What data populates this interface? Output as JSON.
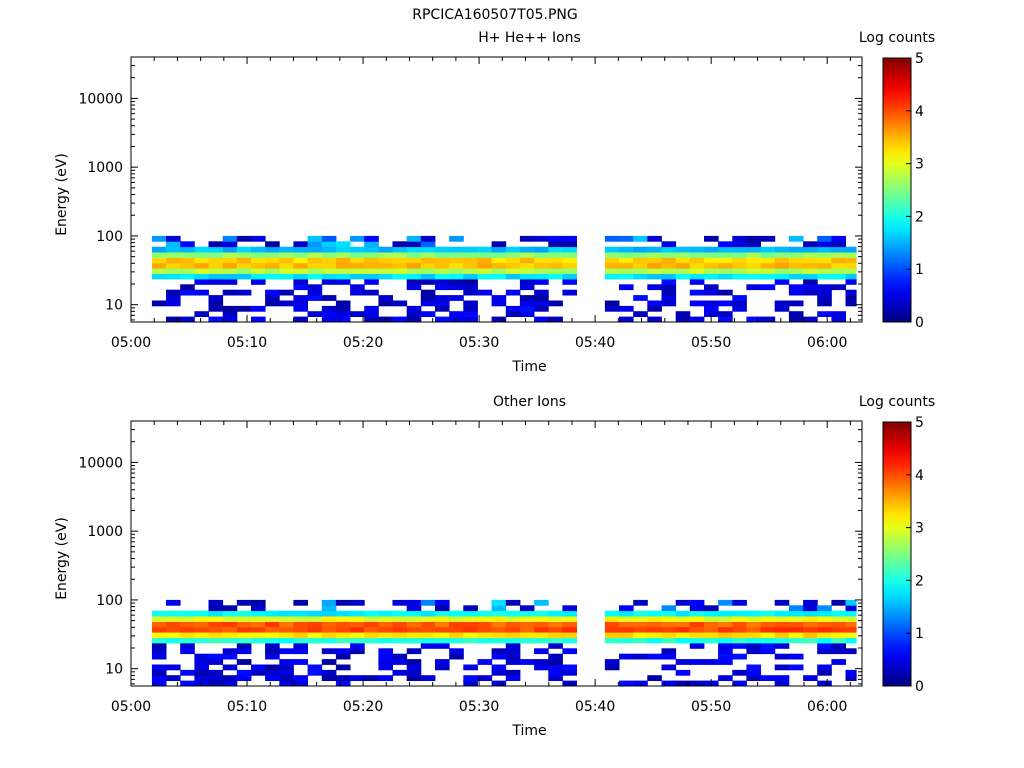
{
  "page": {
    "title": "RPCICA160507T05.PNG"
  },
  "chart_data": [
    {
      "type": "heatmap",
      "title": "H+ He++ Ions",
      "xlabel": "Time",
      "ylabel": "Energy (eV)",
      "x_ticks": [
        "05:00",
        "05:10",
        "05:20",
        "05:30",
        "05:40",
        "05:50",
        "06:00"
      ],
      "y_ticks": [
        "10",
        "100",
        "1000",
        "10000"
      ],
      "y_scale": "log",
      "xlim_minutes": [
        0,
        63
      ],
      "ylim": [
        5.6,
        40000
      ],
      "data_x_range_minutes": [
        1.8,
        62.5
      ],
      "data_gap_minutes": [
        39.3,
        40.8
      ],
      "energy_range": [
        5.6,
        100
      ],
      "band_center_energy": 40,
      "peak_value": 3.5,
      "colorbar": {
        "label": "Log counts",
        "ticks": [
          "0",
          "1",
          "2",
          "3",
          "4",
          "5"
        ],
        "min": 0,
        "max": 5
      },
      "seed": 7
    },
    {
      "type": "heatmap",
      "title": "Other Ions",
      "xlabel": "Time",
      "ylabel": "Energy (eV)",
      "x_ticks": [
        "05:00",
        "05:10",
        "05:20",
        "05:30",
        "05:40",
        "05:50",
        "06:00"
      ],
      "y_ticks": [
        "10",
        "100",
        "1000",
        "10000"
      ],
      "y_scale": "log",
      "xlim_minutes": [
        0,
        63
      ],
      "ylim": [
        5.6,
        40000
      ],
      "data_x_range_minutes": [
        1.8,
        62.5
      ],
      "data_gap_minutes": [
        39.3,
        40.8
      ],
      "energy_range": [
        5.6,
        100
      ],
      "band_center_energy": 40,
      "peak_value": 4.1,
      "colorbar": {
        "label": "Log counts",
        "ticks": [
          "0",
          "1",
          "2",
          "3",
          "4",
          "5"
        ],
        "min": 0,
        "max": 5
      },
      "seed": 19
    }
  ]
}
